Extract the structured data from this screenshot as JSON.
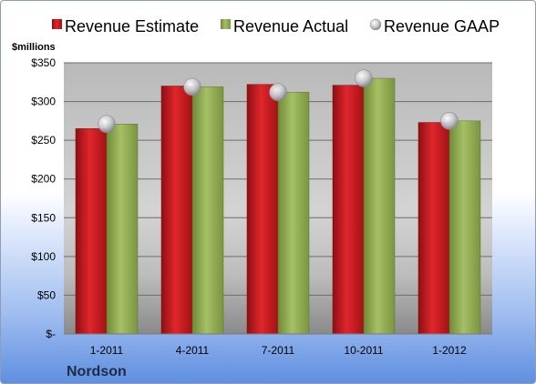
{
  "colors": {
    "estimate": "#c9181e",
    "actual": "#8faa4f",
    "gaap": "#c8c8cc"
  },
  "chart_data": {
    "type": "bar",
    "company": "Nordson",
    "ylabel": "$millions",
    "categories": [
      "1-2011",
      "4-2011",
      "7-2011",
      "10-2011",
      "1-2012"
    ],
    "ylim": [
      0,
      350
    ],
    "yticks": [
      0,
      50,
      100,
      150,
      200,
      250,
      300,
      350
    ],
    "ytick_labels": [
      "$-",
      "$50",
      "$100",
      "$150",
      "$200",
      "$250",
      "$300",
      "$350"
    ],
    "grid": true,
    "legend": "top",
    "series": [
      {
        "name": "Revenue Estimate",
        "type": "bar",
        "values": [
          265,
          320,
          322,
          321,
          273
        ]
      },
      {
        "name": "Revenue Actual",
        "type": "bar",
        "values": [
          271,
          319,
          312,
          330,
          275
        ]
      },
      {
        "name": "Revenue GAAP",
        "type": "scatter",
        "values": [
          271,
          319,
          312,
          330,
          275
        ]
      }
    ]
  }
}
